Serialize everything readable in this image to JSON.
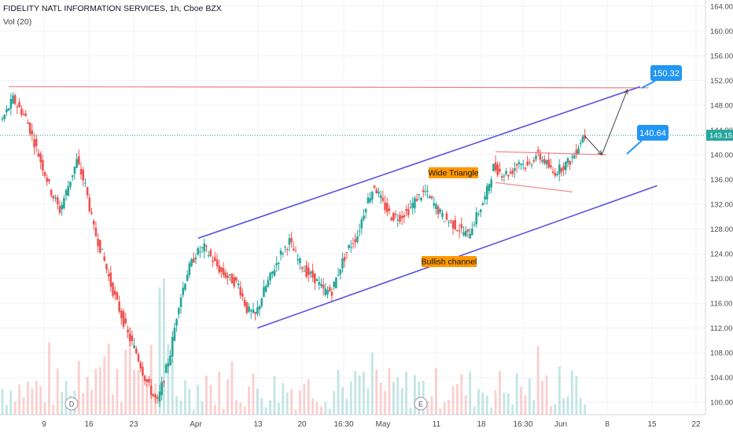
{
  "header": {
    "symbol_line": "FIDELITY NATL INFORMATION SERVICES, 1h, Cboe BZX",
    "volume_label": "Vol (20)"
  },
  "colors": {
    "up": "#26a69a",
    "down": "#ef5350",
    "channel": "#5b4fe0",
    "resistance": "#f08080",
    "current_price": "#26a69a",
    "callout": "#2196f3",
    "annotation_bg": "#ff9800"
  },
  "chart_data": {
    "type": "candlestick",
    "y_axis": {
      "range": [
        98,
        165
      ],
      "ticks": [
        "164.00",
        "160.00",
        "156.00",
        "152.00",
        "148.00",
        "144.00",
        "140.00",
        "136.00",
        "132.00",
        "128.00",
        "124.00",
        "120.00",
        "116.00",
        "112.00",
        "108.00",
        "104.00",
        "100.00"
      ]
    },
    "x_axis": {
      "ticks": [
        "9",
        "16",
        "23",
        "Apr",
        "13",
        "20",
        "16:30",
        "May",
        "11",
        "18",
        "16:30",
        "Jun",
        "8",
        "15",
        "22"
      ]
    },
    "current_price": "143.15",
    "price_path": [
      [
        0,
        145
      ],
      [
        3,
        149
      ],
      [
        6,
        146
      ],
      [
        8,
        142
      ],
      [
        10,
        138
      ],
      [
        12,
        134
      ],
      [
        14,
        131
      ],
      [
        16,
        135
      ],
      [
        18,
        139
      ],
      [
        20,
        135
      ],
      [
        22,
        128
      ],
      [
        24,
        124
      ],
      [
        26,
        119
      ],
      [
        28,
        115
      ],
      [
        30,
        111
      ],
      [
        32,
        108
      ],
      [
        34,
        104
      ],
      [
        36,
        101
      ],
      [
        37,
        100
      ],
      [
        40,
        108
      ],
      [
        42,
        116
      ],
      [
        44,
        121
      ],
      [
        46,
        124
      ],
      [
        48,
        125
      ],
      [
        50,
        123
      ],
      [
        52,
        121
      ],
      [
        54,
        120
      ],
      [
        56,
        119
      ],
      [
        58,
        115
      ],
      [
        60,
        114
      ],
      [
        62,
        118
      ],
      [
        64,
        121
      ],
      [
        66,
        124
      ],
      [
        68,
        126
      ],
      [
        70,
        123
      ],
      [
        72,
        121
      ],
      [
        74,
        120
      ],
      [
        76,
        118
      ],
      [
        78,
        118
      ],
      [
        80,
        122
      ],
      [
        82,
        125
      ],
      [
        84,
        127
      ],
      [
        86,
        132
      ],
      [
        88,
        135
      ],
      [
        90,
        132
      ],
      [
        92,
        130
      ],
      [
        94,
        130
      ],
      [
        96,
        131
      ],
      [
        98,
        133
      ],
      [
        100,
        134
      ],
      [
        102,
        132
      ],
      [
        104,
        130
      ],
      [
        106,
        129
      ],
      [
        108,
        128
      ],
      [
        110,
        127
      ],
      [
        112,
        130
      ],
      [
        114,
        133
      ],
      [
        116,
        138
      ],
      [
        118,
        137
      ],
      [
        120,
        137
      ],
      [
        122,
        139
      ],
      [
        124,
        138
      ],
      [
        126,
        140
      ],
      [
        128,
        139
      ],
      [
        130,
        137
      ],
      [
        132,
        138
      ],
      [
        134,
        139
      ],
      [
        135,
        140
      ],
      [
        137,
        143
      ]
    ],
    "channel_upper": [
      [
        46,
        126.5
      ],
      [
        150,
        151
      ]
    ],
    "channel_lower": [
      [
        60,
        112
      ],
      [
        154,
        135
      ]
    ],
    "triangle_upper": [
      [
        116,
        140.5
      ],
      [
        142,
        140
      ]
    ],
    "triangle_lower": [
      [
        116,
        135.5
      ],
      [
        134,
        134
      ]
    ],
    "resistance_level": 151.0,
    "projection_path": [
      [
        137,
        143
      ],
      [
        141,
        140
      ],
      [
        147,
        150.5
      ]
    ],
    "annotations": [
      {
        "text": "Wide Triangle"
      },
      {
        "text": "Bullish channel"
      }
    ],
    "callouts": [
      {
        "text": "150.32",
        "price": 150.32
      },
      {
        "text": "140.64",
        "price": 140.64
      }
    ],
    "event_markers": [
      "D",
      "E"
    ]
  }
}
